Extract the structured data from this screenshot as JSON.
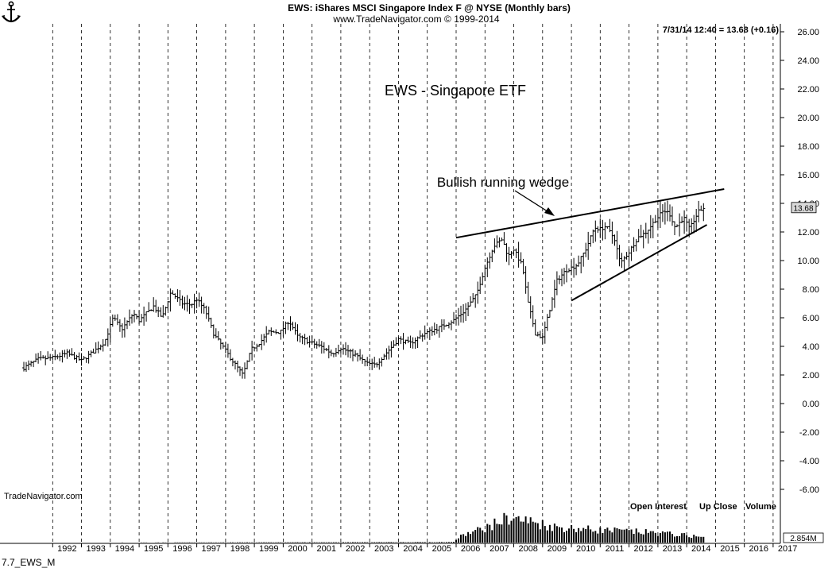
{
  "header": {
    "title": "EWS:  iShares MSCI Singapore Index F @ NYSE  (Monthly bars)",
    "subtitle": "www.TradeNavigator.com © 1999-2014",
    "last_quote": "7/31/14 12:40 = 13.68 (+0.16)"
  },
  "footer": {
    "watermark": "TradeNavigator.com",
    "chart_id": "7.7_EWS_M",
    "indicators": [
      "Open Interest",
      "Up Close",
      "Volume"
    ],
    "volume_max_label": "2.854M"
  },
  "colors": {
    "background": "#ffffff",
    "ink": "#000000",
    "price_tag_bg": "#d9d9d9"
  },
  "icons": {
    "logo": "anchor-icon"
  },
  "chart_data": {
    "type": "ohlc",
    "title": "EWS - Singapore ETF",
    "annotation": "Bullish running wedge",
    "price_tag": "13.68",
    "x_axis": {
      "labels": [
        "1992",
        "1993",
        "1994",
        "1995",
        "1996",
        "1997",
        "1998",
        "1999",
        "2000",
        "2001",
        "2002",
        "2003",
        "2004",
        "2005",
        "2006",
        "2007",
        "2008",
        "2009",
        "2010",
        "2011",
        "2012",
        "2013",
        "2014",
        "2015",
        "2016",
        "2017"
      ],
      "range": [
        1991.0,
        2017.25
      ]
    },
    "y_axis": {
      "ticks": [
        "26.00",
        "24.00",
        "22.00",
        "20.00",
        "18.00",
        "16.00",
        "14.00",
        "12.00",
        "10.00",
        "8.00",
        "6.00",
        "4.00",
        "2.00",
        "0.00",
        "-2.00",
        "-4.00",
        "-6.00"
      ],
      "range": [
        -6.0,
        26.0
      ]
    },
    "grid": {
      "vertical_year_lines": true,
      "horizontal": false
    },
    "series": [
      {
        "kind": "monthly-close",
        "anchors": [
          [
            1991.0,
            2.5
          ],
          [
            1991.5,
            3.1
          ],
          [
            1992.0,
            3.2
          ],
          [
            1992.5,
            3.5
          ],
          [
            1993.0,
            3.0
          ],
          [
            1993.4,
            3.6
          ],
          [
            1993.8,
            4.3
          ],
          [
            1994.1,
            6.0
          ],
          [
            1994.4,
            5.2
          ],
          [
            1994.8,
            6.3
          ],
          [
            1995.0,
            5.8
          ],
          [
            1995.5,
            6.8
          ],
          [
            1995.8,
            6.0
          ],
          [
            1996.1,
            7.8
          ],
          [
            1996.5,
            7.0
          ],
          [
            1996.8,
            6.9
          ],
          [
            1997.0,
            7.3
          ],
          [
            1997.3,
            6.5
          ],
          [
            1997.6,
            4.8
          ],
          [
            1997.9,
            4.0
          ],
          [
            1998.2,
            3.1
          ],
          [
            1998.6,
            2.0
          ],
          [
            1998.9,
            3.8
          ],
          [
            1999.2,
            4.3
          ],
          [
            1999.5,
            5.0
          ],
          [
            1999.9,
            5.0
          ],
          [
            2000.2,
            5.8
          ],
          [
            2000.5,
            4.7
          ],
          [
            2000.9,
            4.3
          ],
          [
            2001.3,
            4.0
          ],
          [
            2001.7,
            3.5
          ],
          [
            2002.0,
            3.9
          ],
          [
            2002.5,
            3.4
          ],
          [
            2002.9,
            2.8
          ],
          [
            2003.2,
            2.7
          ],
          [
            2003.6,
            3.6
          ],
          [
            2004.0,
            4.5
          ],
          [
            2004.4,
            4.2
          ],
          [
            2004.9,
            4.9
          ],
          [
            2005.4,
            5.3
          ],
          [
            2005.9,
            5.8
          ],
          [
            2006.3,
            6.5
          ],
          [
            2006.7,
            7.6
          ],
          [
            2007.0,
            9.5
          ],
          [
            2007.3,
            11.0
          ],
          [
            2007.6,
            11.5
          ],
          [
            2007.8,
            10.3
          ],
          [
            2008.0,
            10.8
          ],
          [
            2008.3,
            9.6
          ],
          [
            2008.5,
            7.0
          ],
          [
            2008.75,
            4.9
          ],
          [
            2009.0,
            4.6
          ],
          [
            2009.25,
            6.6
          ],
          [
            2009.5,
            8.6
          ],
          [
            2009.8,
            9.3
          ],
          [
            2010.2,
            9.7
          ],
          [
            2010.5,
            10.8
          ],
          [
            2010.8,
            12.3
          ],
          [
            2011.0,
            12.2
          ],
          [
            2011.2,
            12.4
          ],
          [
            2011.5,
            11.5
          ],
          [
            2011.7,
            9.8
          ],
          [
            2012.0,
            10.6
          ],
          [
            2012.3,
            11.6
          ],
          [
            2012.6,
            12.0
          ],
          [
            2012.9,
            12.8
          ],
          [
            2013.2,
            13.5
          ],
          [
            2013.4,
            13.3
          ],
          [
            2013.6,
            12.3
          ],
          [
            2013.9,
            13.0
          ],
          [
            2014.1,
            12.2
          ],
          [
            2014.4,
            13.4
          ],
          [
            2014.58,
            13.68
          ]
        ],
        "volume_profile": [
          [
            1991.0,
            0.0
          ],
          [
            2005.9,
            0.02
          ],
          [
            2006.2,
            0.25
          ],
          [
            2007.2,
            0.6
          ],
          [
            2007.8,
            0.9
          ],
          [
            2008.6,
            0.75
          ],
          [
            2009.5,
            0.55
          ],
          [
            2011.0,
            0.45
          ],
          [
            2013.0,
            0.35
          ],
          [
            2014.58,
            0.2
          ]
        ]
      },
      {
        "kind": "trendline",
        "name": "upper",
        "points": [
          [
            2006.0,
            11.6
          ],
          [
            2015.3,
            15.0
          ]
        ]
      },
      {
        "kind": "trendline",
        "name": "lower",
        "points": [
          [
            2010.0,
            7.2
          ],
          [
            2014.7,
            12.5
          ]
        ]
      }
    ]
  }
}
